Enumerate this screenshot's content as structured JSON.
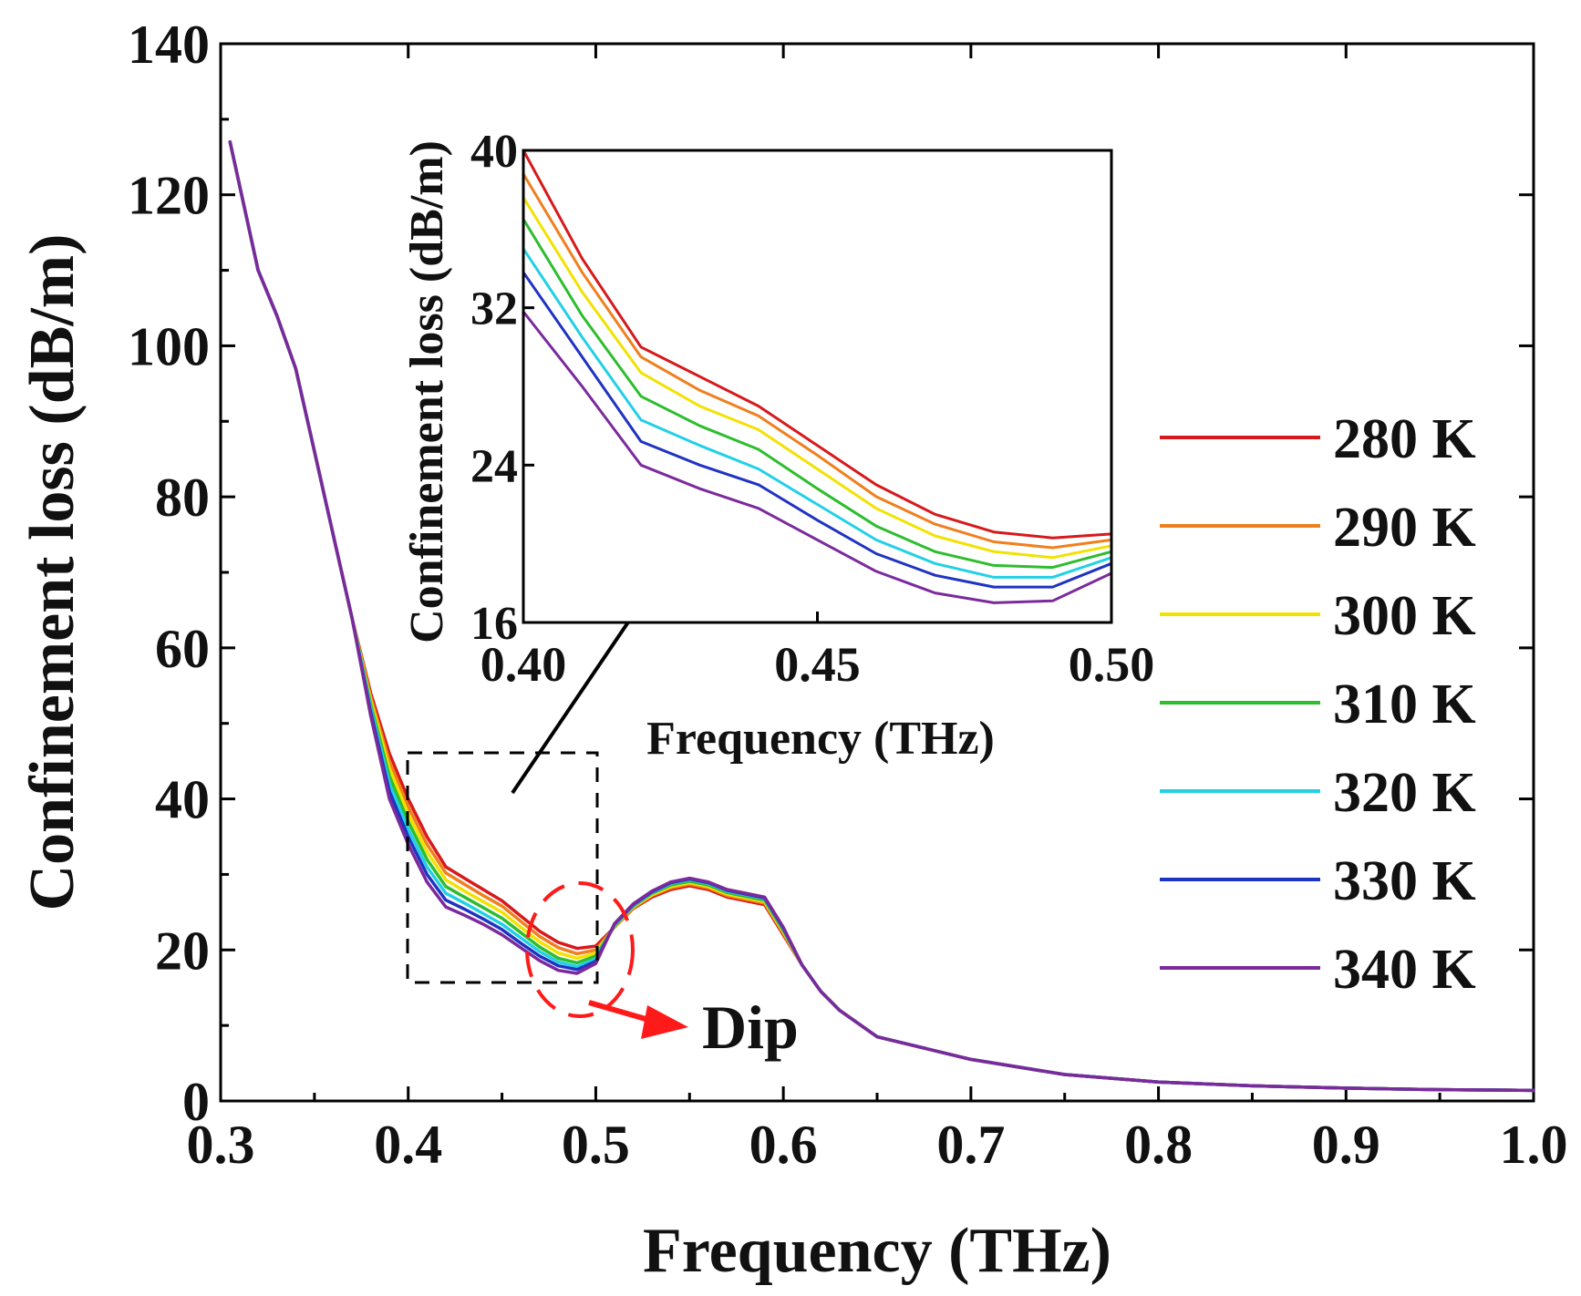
{
  "chart_data": [
    {
      "id": "main",
      "type": "line",
      "xlabel": "Frequency (THz)",
      "ylabel": "Confinement loss (dB/m)",
      "xlim": [
        0.3,
        1.0
      ],
      "ylim": [
        0,
        140
      ],
      "xticks": [
        0.3,
        0.4,
        0.5,
        0.6,
        0.7,
        0.8,
        0.9,
        1.0
      ],
      "xtick_labels": [
        "0.3",
        "0.4",
        "0.5",
        "0.6",
        "0.7",
        "0.8",
        "0.9",
        "1.0"
      ],
      "yticks": [
        0,
        20,
        40,
        60,
        80,
        100,
        120,
        140
      ],
      "ytick_labels": [
        "0",
        "20",
        "40",
        "60",
        "80",
        "100",
        "120",
        "140"
      ],
      "x": [
        0.305,
        0.32,
        0.33,
        0.34,
        0.35,
        0.36,
        0.37,
        0.38,
        0.39,
        0.4,
        0.41,
        0.42,
        0.43,
        0.44,
        0.45,
        0.46,
        0.47,
        0.48,
        0.49,
        0.5,
        0.51,
        0.52,
        0.53,
        0.54,
        0.55,
        0.56,
        0.57,
        0.58,
        0.59,
        0.6,
        0.61,
        0.62,
        0.63,
        0.65,
        0.7,
        0.75,
        0.8,
        0.85,
        0.9,
        0.95,
        1.0
      ],
      "series": [
        {
          "name": "280 K",
          "color": "#d7191c",
          "values": [
            127,
            110,
            104,
            97,
            86,
            75,
            64,
            54,
            46,
            40,
            35,
            31,
            29.5,
            28,
            26.5,
            24.5,
            22.5,
            21,
            20.2,
            20.5,
            23,
            25.5,
            27,
            28,
            28.5,
            28,
            27,
            26.5,
            26,
            22,
            18,
            14.5,
            12,
            8.5,
            5.5,
            3.5,
            2.5,
            2,
            1.7,
            1.5,
            1.4
          ]
        },
        {
          "name": "290 K",
          "color": "#f07f1e",
          "values": [
            127,
            110,
            104,
            97,
            86,
            75,
            64,
            53.5,
            45,
            39,
            34,
            30.2,
            28.7,
            27.2,
            25.8,
            23.8,
            21.8,
            20.3,
            19.5,
            20,
            23,
            25.6,
            27.2,
            28.2,
            28.7,
            28.2,
            27.2,
            26.7,
            26.2,
            22.2,
            18,
            14.5,
            12,
            8.5,
            5.5,
            3.5,
            2.5,
            2,
            1.7,
            1.5,
            1.4
          ]
        },
        {
          "name": "300 K",
          "color": "#f2e200",
          "values": [
            127,
            110,
            104,
            97,
            86,
            75,
            64,
            53,
            44,
            38,
            33,
            29.3,
            27.8,
            26.4,
            25,
            23,
            21.1,
            19.6,
            18.9,
            19.6,
            23.1,
            25.7,
            27.3,
            28.4,
            28.9,
            28.4,
            27.4,
            26.9,
            26.4,
            22.4,
            18,
            14.5,
            12,
            8.5,
            5.5,
            3.5,
            2.5,
            2,
            1.7,
            1.5,
            1.4
          ]
        },
        {
          "name": "310 K",
          "color": "#2ebd2e",
          "values": [
            127,
            110,
            104,
            97,
            86,
            75,
            64,
            52.5,
            43,
            37,
            32,
            28.4,
            27,
            25.6,
            24.2,
            22.3,
            20.4,
            18.9,
            18.3,
            19.2,
            23.2,
            25.8,
            27.5,
            28.6,
            29.1,
            28.6,
            27.6,
            27.1,
            26.6,
            22.6,
            18,
            14.5,
            12,
            8.5,
            5.5,
            3.5,
            2.5,
            2,
            1.7,
            1.5,
            1.4
          ]
        },
        {
          "name": "320 K",
          "color": "#22d0e6",
          "values": [
            127,
            110,
            104,
            97,
            86,
            75,
            64,
            52,
            42,
            36,
            31,
            27.5,
            26.2,
            24.8,
            23.4,
            21.6,
            19.8,
            18.4,
            17.8,
            18.8,
            23.3,
            25.9,
            27.6,
            28.8,
            29.3,
            28.8,
            27.8,
            27.3,
            26.8,
            22.8,
            18,
            14.5,
            12,
            8.5,
            5.5,
            3.5,
            2.5,
            2,
            1.7,
            1.5,
            1.4
          ]
        },
        {
          "name": "330 K",
          "color": "#1f33c2",
          "values": [
            127,
            110,
            104,
            97,
            86,
            75,
            64,
            51.5,
            41,
            35,
            30,
            26.6,
            25.4,
            24.1,
            22.7,
            20.9,
            19.2,
            17.9,
            17.4,
            18.5,
            23.4,
            26,
            27.7,
            28.9,
            29.4,
            28.9,
            27.9,
            27.4,
            26.9,
            22.9,
            18,
            14.5,
            12,
            8.5,
            5.5,
            3.5,
            2.5,
            2,
            1.7,
            1.5,
            1.4
          ]
        },
        {
          "name": "340 K",
          "color": "#7b2a9c",
          "values": [
            127,
            110,
            104,
            97,
            86,
            75,
            64,
            51,
            40,
            34,
            29,
            25.7,
            24.6,
            23.4,
            22,
            20.3,
            18.6,
            17.3,
            16.9,
            18.2,
            23.5,
            26.1,
            27.8,
            29,
            29.5,
            29,
            28,
            27.5,
            27,
            23,
            18,
            14.5,
            12,
            8.5,
            5.5,
            3.5,
            2.5,
            2,
            1.7,
            1.5,
            1.4
          ]
        }
      ],
      "legend_position": "right",
      "annotation": "Dip"
    },
    {
      "id": "inset",
      "type": "line",
      "xlabel": "Frequency (THz)",
      "ylabel": "Confinement loss (dB/m)",
      "xlim": [
        0.4,
        0.5
      ],
      "ylim": [
        16,
        40
      ],
      "xticks": [
        0.4,
        0.45,
        0.5
      ],
      "xtick_labels": [
        "0.40",
        "0.45",
        "0.50"
      ],
      "yticks": [
        16,
        24,
        32,
        40
      ],
      "ytick_labels": [
        "16",
        "24",
        "32",
        "40"
      ],
      "x": [
        0.4,
        0.41,
        0.42,
        0.43,
        0.44,
        0.45,
        0.46,
        0.47,
        0.48,
        0.49,
        0.5
      ],
      "series": [
        {
          "name": "280 K",
          "color": "#d7191c",
          "values": [
            40,
            34.5,
            30,
            28.5,
            27,
            25,
            23,
            21.5,
            20.6,
            20.3,
            20.5
          ]
        },
        {
          "name": "290 K",
          "color": "#f07f1e",
          "values": [
            38.8,
            33.8,
            29.5,
            27.8,
            26.5,
            24.5,
            22.4,
            21,
            20.1,
            19.8,
            20.2
          ]
        },
        {
          "name": "300 K",
          "color": "#f2e200",
          "values": [
            37.6,
            32.8,
            28.7,
            27,
            25.8,
            23.8,
            21.8,
            20.4,
            19.6,
            19.3,
            19.9
          ]
        },
        {
          "name": "310 K",
          "color": "#2ebd2e",
          "values": [
            36.5,
            31.6,
            27.5,
            26,
            24.8,
            22.8,
            20.9,
            19.6,
            18.9,
            18.8,
            19.6
          ]
        },
        {
          "name": "320 K",
          "color": "#22d0e6",
          "values": [
            35,
            30.5,
            26.3,
            25,
            23.8,
            22,
            20.2,
            19,
            18.3,
            18.3,
            19.3
          ]
        },
        {
          "name": "330 K",
          "color": "#1f33c2",
          "values": [
            33.8,
            29.5,
            25.2,
            24,
            23,
            21.2,
            19.5,
            18.4,
            17.8,
            17.8,
            19
          ]
        },
        {
          "name": "340 K",
          "color": "#7b2a9c",
          "values": [
            31.8,
            28,
            24,
            22.8,
            21.8,
            20.2,
            18.6,
            17.5,
            17,
            17.1,
            18.5
          ]
        }
      ]
    }
  ]
}
